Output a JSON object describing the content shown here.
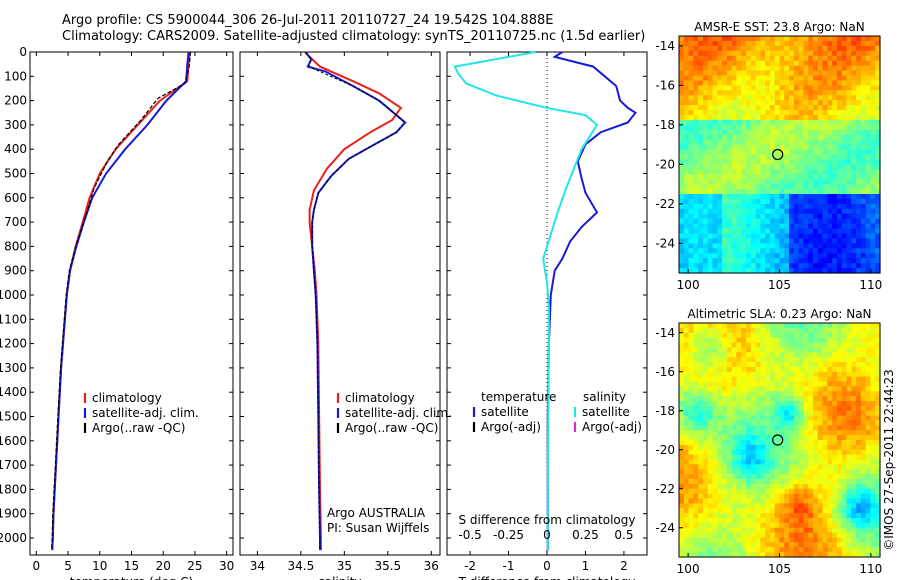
{
  "title": {
    "line1": "Argo profile: CS 5900044_306 26-Jul-2011 20110727_24 19.542S 104.888E",
    "line2": "Climatology: CARS2009. Satellite-adjusted climatology: synTS_20110725.nc (1.5d earlier)"
  },
  "colors": {
    "climatology": "#e8221a",
    "satellite": "#1a1ad6",
    "argo": "#000000",
    "sal_sat": "#22e5e5",
    "sal_argo": "#d62ad6"
  },
  "chart_data": [
    {
      "type": "line",
      "id": "temperature",
      "xlabel": "temperature (deg C)",
      "xlim": [
        -1,
        31
      ],
      "xticks": [
        0,
        5,
        10,
        15,
        20,
        25,
        30
      ],
      "ylim": [
        2070,
        0
      ],
      "yticks": [
        0,
        100,
        200,
        300,
        400,
        500,
        600,
        700,
        800,
        900,
        1000,
        1100,
        1200,
        1300,
        1400,
        1500,
        1600,
        1700,
        1800,
        1900,
        2000
      ],
      "legend": [
        "climatology",
        "satellite-adj. clim.",
        "Argo(..raw -QC)"
      ],
      "series": [
        {
          "name": "climatology",
          "points": [
            [
              24.2,
              0
            ],
            [
              24.0,
              50
            ],
            [
              23.8,
              120
            ],
            [
              19.5,
              200
            ],
            [
              16,
              300
            ],
            [
              12.5,
              400
            ],
            [
              10,
              500
            ],
            [
              8.4,
              600
            ],
            [
              7.3,
              700
            ],
            [
              6.2,
              800
            ],
            [
              5.3,
              900
            ],
            [
              4.8,
              1000
            ],
            [
              4.5,
              1100
            ],
            [
              4.2,
              1200
            ],
            [
              3.9,
              1300
            ],
            [
              3.7,
              1400
            ],
            [
              3.5,
              1500
            ],
            [
              3.3,
              1600
            ],
            [
              3.1,
              1700
            ],
            [
              2.9,
              1800
            ],
            [
              2.7,
              1900
            ],
            [
              2.6,
              2000
            ],
            [
              2.5,
              2050
            ]
          ]
        },
        {
          "name": "satellite-adj. clim.",
          "points": [
            [
              24.0,
              0
            ],
            [
              23.8,
              50
            ],
            [
              23.6,
              120
            ],
            [
              20.5,
              200
            ],
            [
              17.5,
              300
            ],
            [
              14,
              400
            ],
            [
              11,
              500
            ],
            [
              8.8,
              600
            ],
            [
              7.5,
              700
            ],
            [
              6.3,
              800
            ],
            [
              5.3,
              900
            ],
            [
              4.8,
              1000
            ],
            [
              4.5,
              1100
            ],
            [
              4.2,
              1200
            ],
            [
              3.9,
              1300
            ],
            [
              3.7,
              1400
            ],
            [
              3.5,
              1500
            ],
            [
              3.3,
              1600
            ],
            [
              3.1,
              1700
            ],
            [
              2.9,
              1800
            ],
            [
              2.7,
              1900
            ],
            [
              2.6,
              2000
            ],
            [
              2.5,
              2050
            ]
          ]
        },
        {
          "name": "Argo(..raw -QC)",
          "points": [
            [
              24.3,
              0
            ],
            [
              24.1,
              60
            ],
            [
              23.4,
              130
            ],
            [
              19.2,
              190
            ],
            [
              16.5,
              280
            ],
            [
              13,
              380
            ],
            [
              11.2,
              450
            ],
            [
              9.1,
              560
            ],
            [
              7.6,
              690
            ],
            [
              6.2,
              800
            ],
            [
              5.2,
              900
            ],
            [
              4.7,
              1000
            ],
            [
              4.4,
              1100
            ],
            [
              4.1,
              1200
            ],
            [
              3.8,
              1300
            ],
            [
              3.6,
              1400
            ],
            [
              3.4,
              1500
            ],
            [
              3.2,
              1600
            ],
            [
              3.0,
              1700
            ],
            [
              2.8,
              1800
            ],
            [
              2.6,
              1900
            ],
            [
              2.5,
              2000
            ],
            [
              2.4,
              2050
            ]
          ]
        }
      ]
    },
    {
      "type": "line",
      "id": "salinity",
      "xlabel": "salinity",
      "xlim": [
        33.8,
        36.1
      ],
      "xticks": [
        34,
        34.5,
        35,
        35.5,
        36
      ],
      "ylim": [
        2070,
        0
      ],
      "legend": [
        "climatology",
        "satellite-adj. clim.",
        "Argo(..raw -QC)"
      ],
      "annotation": [
        "Argo AUSTRALIA",
        "PI: Susan Wijffels"
      ],
      "series": [
        {
          "name": "climatology",
          "points": [
            [
              34.55,
              0
            ],
            [
              34.6,
              20
            ],
            [
              34.72,
              60
            ],
            [
              35.1,
              120
            ],
            [
              35.4,
              170
            ],
            [
              35.65,
              230
            ],
            [
              35.55,
              280
            ],
            [
              35.3,
              330
            ],
            [
              35.0,
              400
            ],
            [
              34.8,
              480
            ],
            [
              34.65,
              570
            ],
            [
              34.6,
              650
            ],
            [
              34.6,
              700
            ],
            [
              34.63,
              800
            ],
            [
              34.66,
              900
            ],
            [
              34.68,
              1000
            ],
            [
              34.7,
              1200
            ],
            [
              34.71,
              1500
            ],
            [
              34.72,
              1800
            ],
            [
              34.73,
              2000
            ],
            [
              34.73,
              2050
            ]
          ]
        },
        {
          "name": "satellite-adj. clim.",
          "points": [
            [
              34.55,
              0
            ],
            [
              34.62,
              30
            ],
            [
              34.58,
              60
            ],
            [
              34.78,
              80
            ],
            [
              35.1,
              140
            ],
            [
              35.4,
              200
            ],
            [
              35.6,
              260
            ],
            [
              35.7,
              290
            ],
            [
              35.6,
              330
            ],
            [
              35.35,
              380
            ],
            [
              35.05,
              440
            ],
            [
              34.85,
              510
            ],
            [
              34.7,
              580
            ],
            [
              34.65,
              650
            ],
            [
              34.63,
              700
            ],
            [
              34.63,
              800
            ],
            [
              34.65,
              900
            ],
            [
              34.67,
              1000
            ],
            [
              34.69,
              1200
            ],
            [
              34.7,
              1500
            ],
            [
              34.71,
              1800
            ],
            [
              34.72,
              2000
            ],
            [
              34.72,
              2050
            ]
          ]
        },
        {
          "name": "Argo(..raw -QC)",
          "points": [
            [
              34.56,
              0
            ],
            [
              34.62,
              30
            ],
            [
              34.59,
              60
            ],
            [
              34.78,
              90
            ],
            [
              35.1,
              140
            ],
            [
              35.4,
              200
            ],
            [
              35.6,
              260
            ],
            [
              35.69,
              290
            ],
            [
              35.6,
              330
            ],
            [
              35.35,
              380
            ],
            [
              35.05,
              440
            ],
            [
              34.85,
              510
            ],
            [
              34.7,
              580
            ],
            [
              34.65,
              650
            ],
            [
              34.63,
              700
            ],
            [
              34.63,
              800
            ],
            [
              34.65,
              900
            ],
            [
              34.67,
              1000
            ],
            [
              34.69,
              1200
            ],
            [
              34.7,
              1500
            ],
            [
              34.71,
              1800
            ],
            [
              34.72,
              2000
            ],
            [
              34.72,
              2050
            ]
          ]
        }
      ]
    },
    {
      "type": "line",
      "id": "difference",
      "xlabel": "T difference from climatology",
      "xlabel_top": "S difference from climatology",
      "xlim": [
        -2.6,
        2.6
      ],
      "xticks": [
        -2,
        -1,
        0,
        1,
        2
      ],
      "sticks": [
        [
          "-0.5",
          -2
        ],
        [
          "-0.25",
          -1
        ],
        [
          "0",
          0
        ],
        [
          "0.25",
          1
        ],
        [
          "0.5",
          2
        ]
      ],
      "ylim": [
        2070,
        0
      ],
      "legend_left": [
        "temperature",
        "satellite",
        "Argo(-adj)"
      ],
      "legend_right": [
        "salinity",
        "satellite",
        "Argo(-adj)"
      ],
      "series": [
        {
          "name": "temperature satellite",
          "points": [
            [
              0.4,
              0
            ],
            [
              0.2,
              20
            ],
            [
              1.2,
              60
            ],
            [
              1.5,
              100
            ],
            [
              1.8,
              140
            ],
            [
              1.9,
              200
            ],
            [
              2.1,
              230
            ],
            [
              2.3,
              250
            ],
            [
              2.1,
              290
            ],
            [
              1.4,
              330
            ],
            [
              1.0,
              380
            ],
            [
              0.8,
              450
            ],
            [
              0.9,
              520
            ],
            [
              1.0,
              580
            ],
            [
              1.3,
              660
            ],
            [
              0.9,
              720
            ],
            [
              0.6,
              780
            ],
            [
              0.4,
              850
            ],
            [
              0.2,
              900
            ],
            [
              0.1,
              1000
            ],
            [
              0.05,
              1200
            ],
            [
              0.02,
              1500
            ],
            [
              0.02,
              1800
            ],
            [
              0.02,
              2000
            ],
            [
              0.02,
              2050
            ]
          ]
        },
        {
          "name": "salinity satellite",
          "points": [
            [
              -0.3,
              0
            ],
            [
              -2.4,
              60
            ],
            [
              -2.3,
              90
            ],
            [
              -2.1,
              130
            ],
            [
              -1.3,
              180
            ],
            [
              0.0,
              230
            ],
            [
              1.0,
              260
            ],
            [
              1.3,
              300
            ],
            [
              1.1,
              350
            ],
            [
              0.9,
              400
            ],
            [
              0.7,
              480
            ],
            [
              0.5,
              560
            ],
            [
              0.3,
              650
            ],
            [
              0.1,
              750
            ],
            [
              -0.1,
              850
            ],
            [
              0.0,
              950
            ],
            [
              0.05,
              1050
            ],
            [
              0.05,
              1200
            ],
            [
              0.03,
              1500
            ],
            [
              0.02,
              1800
            ],
            [
              0.02,
              2000
            ],
            [
              0.02,
              2050
            ]
          ]
        }
      ]
    },
    {
      "type": "heatmap",
      "id": "sst",
      "title": "AMSR-E SST: 23.8 Argo: NaN",
      "xlim": [
        99.5,
        110.5
      ],
      "ylim": [
        -25.5,
        -13.5
      ],
      "xticks": [
        100,
        105,
        110
      ],
      "yticks": [
        -14,
        -16,
        -18,
        -20,
        -22,
        -24
      ],
      "marker": [
        104.9,
        -19.5
      ]
    },
    {
      "type": "heatmap",
      "id": "sla",
      "title": "Altimetric SLA: 0.23 Argo: NaN",
      "xlim": [
        99.5,
        110.5
      ],
      "ylim": [
        -25.5,
        -13.5
      ],
      "xticks": [
        100,
        105,
        110
      ],
      "yticks": [
        -14,
        -16,
        -18,
        -20,
        -22,
        -24
      ],
      "marker": [
        104.9,
        -19.5
      ]
    }
  ],
  "footer": {
    "timestamp": "©IMOS 27-Sep-2011 22:44:23"
  }
}
